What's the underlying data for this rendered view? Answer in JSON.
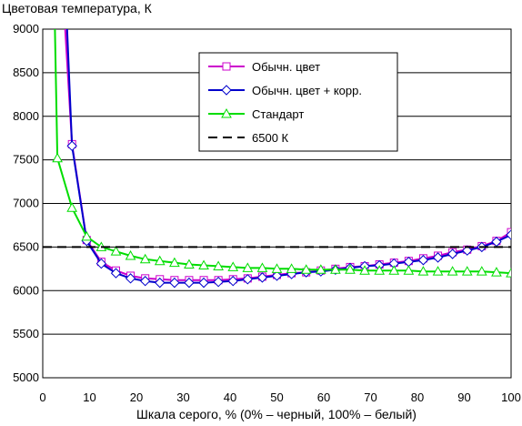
{
  "chart_data": {
    "type": "line",
    "ylabel": "Цветовая температура, К",
    "xlabel": "Шкала серого, % (0% – черный, 100% – белый)",
    "xlim": [
      0,
      100
    ],
    "ylim": [
      5000,
      9000
    ],
    "xticks": [
      0,
      10,
      20,
      30,
      40,
      50,
      60,
      70,
      80,
      90,
      100
    ],
    "yticks": [
      5000,
      5500,
      6000,
      6500,
      7000,
      7500,
      8000,
      8500,
      9000
    ],
    "grid": "horizontal",
    "legend_position": "top-right",
    "x": [
      6.25,
      9.38,
      12.5,
      15.63,
      18.75,
      21.88,
      25.0,
      28.13,
      31.25,
      34.38,
      37.5,
      40.63,
      43.75,
      46.88,
      50.0,
      53.13,
      56.25,
      59.38,
      62.5,
      65.63,
      68.75,
      71.88,
      75.0,
      78.13,
      81.25,
      84.38,
      87.5,
      90.63,
      93.75,
      96.88,
      100.0
    ],
    "series": [
      {
        "name": "Обычн. цвет",
        "color": "#cc00cc",
        "marker": "square",
        "x_start": 3.1,
        "values": [
          7680,
          6580,
          6330,
          6230,
          6170,
          6140,
          6130,
          6120,
          6120,
          6120,
          6120,
          6130,
          6140,
          6160,
          6180,
          6200,
          6210,
          6230,
          6250,
          6270,
          6280,
          6300,
          6320,
          6340,
          6370,
          6400,
          6440,
          6470,
          6510,
          6570,
          6670
        ]
      },
      {
        "name": "Обычн. цвет + корр.",
        "color": "#0000cc",
        "marker": "diamond",
        "values": [
          7660,
          6570,
          6310,
          6200,
          6140,
          6110,
          6090,
          6090,
          6090,
          6090,
          6100,
          6110,
          6130,
          6150,
          6170,
          6190,
          6210,
          6220,
          6240,
          6260,
          6280,
          6290,
          6310,
          6330,
          6350,
          6380,
          6420,
          6460,
          6500,
          6560,
          6640
        ]
      },
      {
        "name": "Стандарт",
        "color": "#00dd00",
        "marker": "triangle",
        "x": [
          3.13,
          6.25,
          9.38,
          12.5,
          15.63,
          18.75,
          21.88,
          25.0,
          28.13,
          31.25,
          34.38,
          37.5,
          40.63,
          43.75,
          46.88,
          50.0,
          53.13,
          56.25,
          59.38,
          62.5,
          65.63,
          68.75,
          71.88,
          75.0,
          78.13,
          81.25,
          84.38,
          87.5,
          90.63,
          93.75,
          96.88,
          100.0
        ],
        "values": [
          7520,
          6950,
          6620,
          6500,
          6450,
          6400,
          6360,
          6340,
          6320,
          6300,
          6290,
          6280,
          6270,
          6260,
          6260,
          6250,
          6250,
          6240,
          6240,
          6240,
          6240,
          6230,
          6230,
          6230,
          6230,
          6220,
          6220,
          6220,
          6220,
          6220,
          6210,
          6200
        ]
      },
      {
        "name": "6500 К",
        "color": "#000000",
        "dash": true,
        "constant": 6500
      }
    ]
  }
}
